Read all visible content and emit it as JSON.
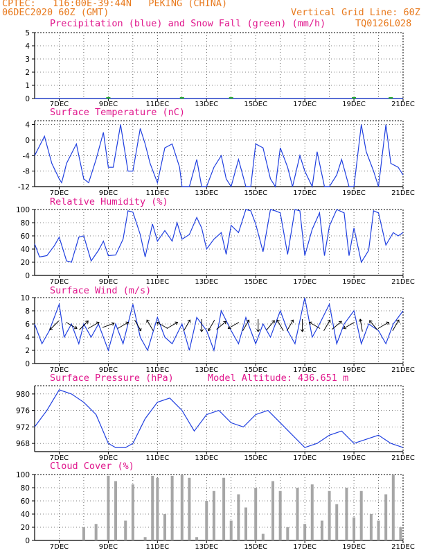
{
  "header": {
    "line1_left": "CPTEC:",
    "line1_coords": "116:00E-39:44N",
    "line1_station": "PEKING (CHINA)",
    "line2_left": "06DEC2020 60Z (GMT)",
    "line2_mid": "Vertical Grid Line: 60Z",
    "line2_right": "TQ0126L028"
  },
  "date_labels": [
    "7DEC",
    "9DEC",
    "11DEC",
    "13DEC",
    "15DEC",
    "17DEC",
    "19DEC",
    "21DEC"
  ],
  "colors": {
    "header": "#e87a1e",
    "title": "#e0168c",
    "line": "#1f3fe0",
    "snow": "#22aa22",
    "bar": "#a6a6a6"
  },
  "panels": {
    "precip": {
      "title": "Precipitation (blue) and Snow Fall (green) (mm/h)",
      "yticks": [
        "5",
        "4",
        "3",
        "2",
        "1",
        "0"
      ]
    },
    "temp": {
      "title": "Surface Temperature (nC)",
      "yticks": [
        "4",
        "0",
        "-4",
        "-8",
        "-12"
      ]
    },
    "rh": {
      "title": "Relative Humidity (%)",
      "yticks": [
        "100",
        "80",
        "60",
        "40",
        "20",
        "0"
      ]
    },
    "wind": {
      "title": "Surface Wind (m/s)",
      "yticks": [
        "10",
        "8",
        "6",
        "4",
        "2",
        "0"
      ]
    },
    "pres": {
      "title": "Surface Pressure (hPa)",
      "extra": "Model Altitude: 436.651 m",
      "yticks": [
        "980",
        "976",
        "972",
        "968"
      ]
    },
    "cloud": {
      "title": "Cloud Cover (%)",
      "yticks": [
        "100",
        "80",
        "60",
        "40",
        "20",
        "0"
      ]
    }
  },
  "chart_data": [
    {
      "type": "line",
      "name": "Precipitation and Snow Fall",
      "x_unit": "day of Dec 2020",
      "ylim": [
        0,
        5
      ],
      "series": [
        {
          "name": "Precipitation",
          "x": [
            6.0,
            21.0
          ],
          "y": [
            0,
            0
          ]
        },
        {
          "name": "Snow Fall",
          "x": [
            9.0,
            12.0,
            14.0,
            19.0,
            20.5
          ],
          "y": [
            0.05,
            0.05,
            0.05,
            0.05,
            0.05
          ]
        }
      ]
    },
    {
      "type": "line",
      "name": "Surface Temperature",
      "ylim": [
        -12,
        5
      ],
      "x": [
        6.0,
        6.4,
        6.7,
        7.0,
        7.1,
        7.3,
        7.7,
        8.0,
        8.2,
        8.5,
        8.8,
        9.0,
        9.2,
        9.5,
        9.8,
        10.0,
        10.3,
        10.5,
        10.7,
        11.0,
        11.3,
        11.6,
        11.9,
        12.0,
        12.3,
        12.6,
        12.8,
        13.0,
        13.3,
        13.6,
        13.8,
        14.0,
        14.3,
        14.6,
        14.8,
        15.0,
        15.3,
        15.6,
        15.8,
        16.0,
        16.3,
        16.5,
        16.8,
        17.0,
        17.3,
        17.5,
        17.8,
        18.0,
        18.3,
        18.5,
        18.8,
        19.0,
        19.3,
        19.5,
        19.8,
        20.0,
        20.3,
        20.5,
        20.8,
        21.0
      ],
      "y": [
        -4,
        1,
        -6,
        -10,
        -11,
        -6,
        -1,
        -10,
        -11,
        -5,
        2,
        -7,
        -7,
        4,
        -8,
        -8,
        3,
        -1,
        -6,
        -11,
        -2,
        -1,
        -7,
        -12,
        -12,
        -5,
        -12,
        -12,
        -7,
        -4,
        -10,
        -12,
        -5,
        -12,
        -12,
        -1,
        -2,
        -10,
        -12,
        -2,
        -7,
        -12,
        -4,
        -8,
        -12,
        -3,
        -12,
        -12,
        -9,
        -5,
        -12,
        -12,
        4,
        -3,
        -8,
        -12,
        4,
        -6,
        -7,
        -9
      ]
    },
    {
      "type": "line",
      "name": "Relative Humidity",
      "ylim": [
        0,
        100
      ],
      "x": [
        6.0,
        6.2,
        6.5,
        6.8,
        7.0,
        7.3,
        7.5,
        7.8,
        8.0,
        8.3,
        8.6,
        8.8,
        9.0,
        9.3,
        9.6,
        9.8,
        10.0,
        10.3,
        10.5,
        10.8,
        11.0,
        11.3,
        11.6,
        11.8,
        12.0,
        12.3,
        12.6,
        12.8,
        13.0,
        13.3,
        13.6,
        13.8,
        14.0,
        14.3,
        14.6,
        14.8,
        15.0,
        15.3,
        15.6,
        15.8,
        16.0,
        16.3,
        16.6,
        16.8,
        17.0,
        17.3,
        17.6,
        17.8,
        18.0,
        18.3,
        18.6,
        18.8,
        19.0,
        19.3,
        19.6,
        19.8,
        20.0,
        20.3,
        20.6,
        20.8,
        21.0
      ],
      "y": [
        48,
        28,
        30,
        45,
        58,
        22,
        20,
        58,
        60,
        22,
        38,
        52,
        30,
        31,
        55,
        98,
        96,
        62,
        28,
        78,
        52,
        68,
        52,
        80,
        55,
        62,
        88,
        72,
        40,
        55,
        65,
        32,
        76,
        65,
        100,
        98,
        78,
        36,
        100,
        98,
        95,
        32,
        100,
        98,
        30,
        70,
        95,
        30,
        75,
        100,
        95,
        30,
        72,
        20,
        38,
        98,
        95,
        46,
        65,
        60,
        65
      ]
    },
    {
      "type": "line",
      "name": "Surface Wind",
      "ylim": [
        0,
        10
      ],
      "x": [
        6.0,
        6.3,
        6.6,
        7.0,
        7.2,
        7.5,
        7.8,
        8.0,
        8.3,
        8.6,
        9.0,
        9.3,
        9.6,
        10.0,
        10.3,
        10.6,
        11.0,
        11.3,
        11.6,
        12.0,
        12.3,
        12.6,
        13.0,
        13.3,
        13.6,
        14.0,
        14.3,
        14.6,
        15.0,
        15.3,
        15.6,
        16.0,
        16.3,
        16.6,
        17.0,
        17.3,
        17.6,
        18.0,
        18.3,
        18.6,
        19.0,
        19.3,
        19.6,
        20.0,
        20.3,
        20.6,
        21.0
      ],
      "y": [
        6,
        3,
        5,
        9,
        4,
        6,
        3,
        6,
        4,
        6,
        2,
        6,
        3,
        9,
        4,
        2,
        7,
        4,
        3,
        6,
        2,
        7,
        5,
        2,
        8,
        5,
        3,
        7,
        3,
        6,
        4,
        8,
        5,
        3,
        10,
        4,
        6,
        9,
        3,
        6,
        8,
        3,
        6,
        5,
        3,
        6,
        8
      ]
    },
    {
      "type": "line",
      "name": "Surface Pressure",
      "ylim": [
        966,
        982
      ],
      "x": [
        6.0,
        6.5,
        7.0,
        7.5,
        8.0,
        8.5,
        9.0,
        9.3,
        9.7,
        10.0,
        10.5,
        11.0,
        11.5,
        12.0,
        12.5,
        13.0,
        13.5,
        14.0,
        14.5,
        15.0,
        15.5,
        16.0,
        16.5,
        17.0,
        17.5,
        18.0,
        18.5,
        19.0,
        19.5,
        20.0,
        20.5,
        21.0
      ],
      "y": [
        972,
        976,
        981,
        980,
        978,
        975,
        968,
        967,
        967,
        968,
        974,
        978,
        979,
        976,
        971,
        975,
        976,
        973,
        972,
        975,
        976,
        973,
        970,
        967,
        968,
        970,
        971,
        968,
        969,
        970,
        968,
        967
      ]
    },
    {
      "type": "bar",
      "name": "Cloud Cover",
      "ylim": [
        0,
        100
      ],
      "x": [
        8.0,
        8.5,
        9.0,
        9.3,
        9.7,
        10.0,
        10.5,
        10.8,
        11.0,
        11.3,
        11.6,
        12.0,
        12.3,
        12.6,
        13.0,
        13.3,
        13.7,
        14.0,
        14.3,
        14.6,
        15.0,
        15.3,
        15.7,
        16.0,
        16.3,
        16.7,
        17.0,
        17.3,
        17.7,
        18.0,
        18.3,
        18.7,
        19.0,
        19.3,
        19.7,
        20.0,
        20.3,
        20.6,
        20.9
      ],
      "values": [
        20,
        25,
        98,
        90,
        30,
        85,
        5,
        98,
        95,
        40,
        98,
        100,
        95,
        5,
        60,
        75,
        95,
        30,
        70,
        50,
        80,
        10,
        90,
        75,
        20,
        80,
        25,
        85,
        30,
        75,
        55,
        80,
        35,
        75,
        40,
        30,
        70,
        100,
        20
      ]
    }
  ]
}
